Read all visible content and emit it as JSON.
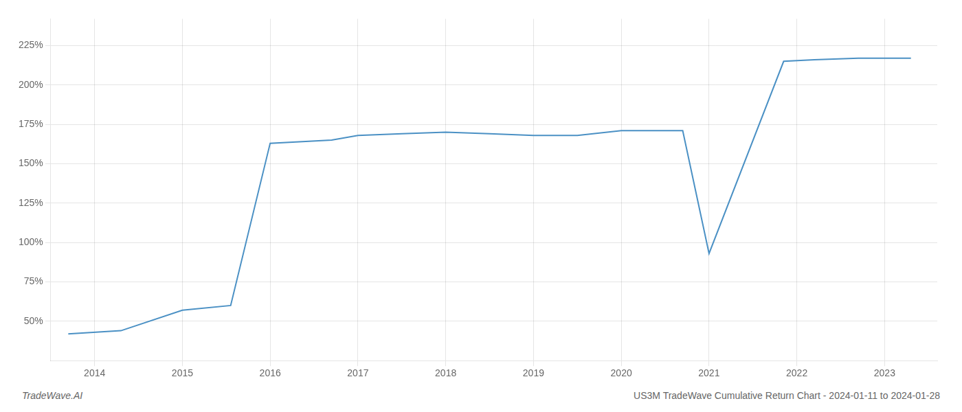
{
  "chart_data": {
    "type": "line",
    "x": [
      2013.7,
      2014.3,
      2015.0,
      2015.55,
      2016.0,
      2016.7,
      2017.0,
      2017.5,
      2018.0,
      2018.5,
      2019.0,
      2019.5,
      2020.0,
      2020.7,
      2021.0,
      2021.85,
      2022.2,
      2022.7,
      2023.3
    ],
    "values": [
      42,
      44,
      57,
      60,
      163,
      165,
      168,
      169,
      170,
      169,
      168,
      168,
      171,
      171,
      93,
      215,
      216,
      217,
      217
    ],
    "color": "#4a90c4",
    "xlim": [
      2013.5,
      2023.6
    ],
    "xticks": [
      2014,
      2015,
      2016,
      2017,
      2018,
      2019,
      2020,
      2021,
      2022,
      2023
    ],
    "ylim": [
      25,
      242
    ],
    "yticks": [
      {
        "value": 50,
        "label": "50%"
      },
      {
        "value": 75,
        "label": "75%"
      },
      {
        "value": 100,
        "label": "100%"
      },
      {
        "value": 125,
        "label": "125%"
      },
      {
        "value": 150,
        "label": "150%"
      },
      {
        "value": 175,
        "label": "175%"
      },
      {
        "value": 200,
        "label": "200%"
      },
      {
        "value": 225,
        "label": "225%"
      }
    ],
    "grid": true,
    "annotations": [
      "TradeWave.AI",
      "US3M TradeWave Cumulative Return Chart - 2024-01-11 to 2024-01-28"
    ]
  }
}
